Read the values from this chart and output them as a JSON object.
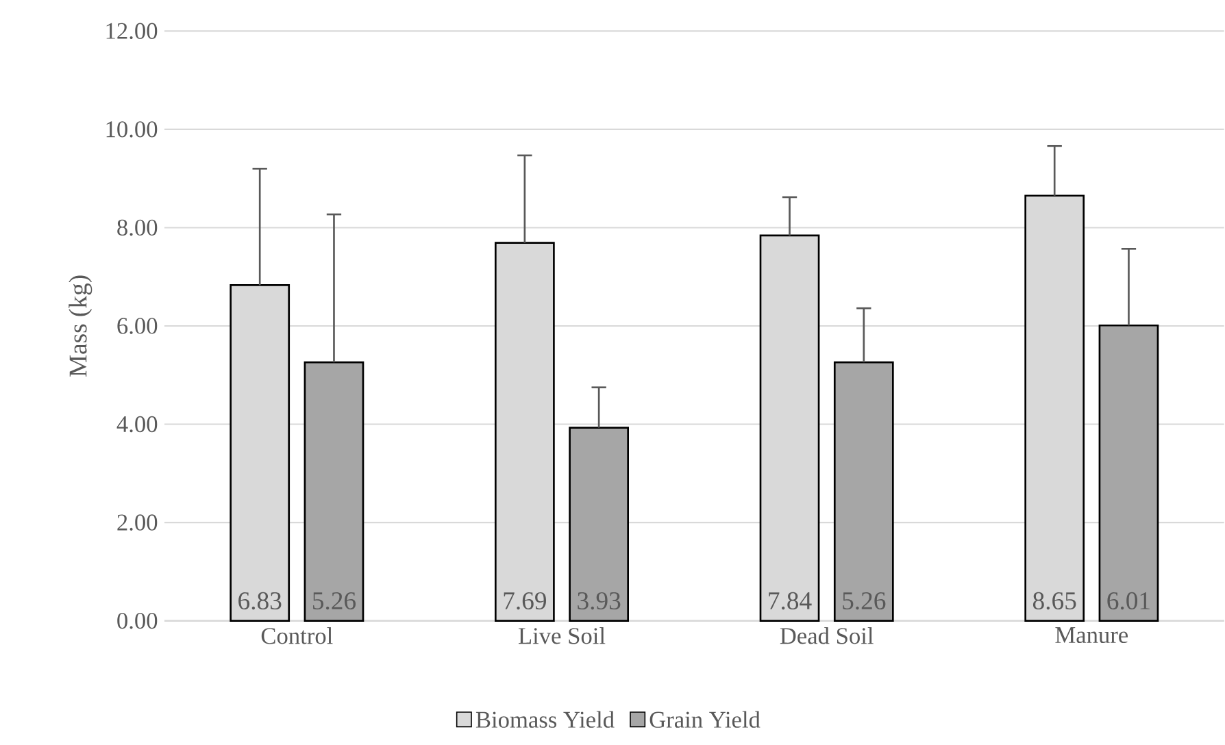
{
  "chart_data": {
    "type": "bar",
    "ylabel": "Mass (kg)",
    "categories": [
      "Control",
      "Live Soil",
      "Dead Soil",
      "Manure"
    ],
    "series": [
      {
        "name": "Biomass Yield",
        "color": "#d9d9d9",
        "values": [
          6.83,
          7.69,
          7.84,
          8.65
        ],
        "errors": [
          [
            6.83,
            9.2
          ],
          [
            7.69,
            9.47
          ],
          [
            7.84,
            8.62
          ],
          [
            8.65,
            9.66
          ]
        ]
      },
      {
        "name": "Grain Yield",
        "color": "#a6a6a6",
        "values": [
          5.26,
          3.93,
          5.26,
          6.01
        ],
        "errors": [
          [
            5.26,
            8.27
          ],
          [
            3.93,
            4.75
          ],
          [
            5.26,
            6.36
          ],
          [
            6.01,
            7.57
          ]
        ]
      }
    ],
    "ylim": [
      0,
      12
    ],
    "yticks": [
      {
        "value": 0,
        "label": "0.00"
      },
      {
        "value": 2,
        "label": "2.00"
      },
      {
        "value": 4,
        "label": "4.00"
      },
      {
        "value": 6,
        "label": "6.00"
      },
      {
        "value": 8,
        "label": "8.00"
      },
      {
        "value": 10,
        "label": "10.00"
      },
      {
        "value": 12,
        "label": "12.00"
      }
    ],
    "grid": "y",
    "legend": "bottom",
    "data_labels": true
  }
}
